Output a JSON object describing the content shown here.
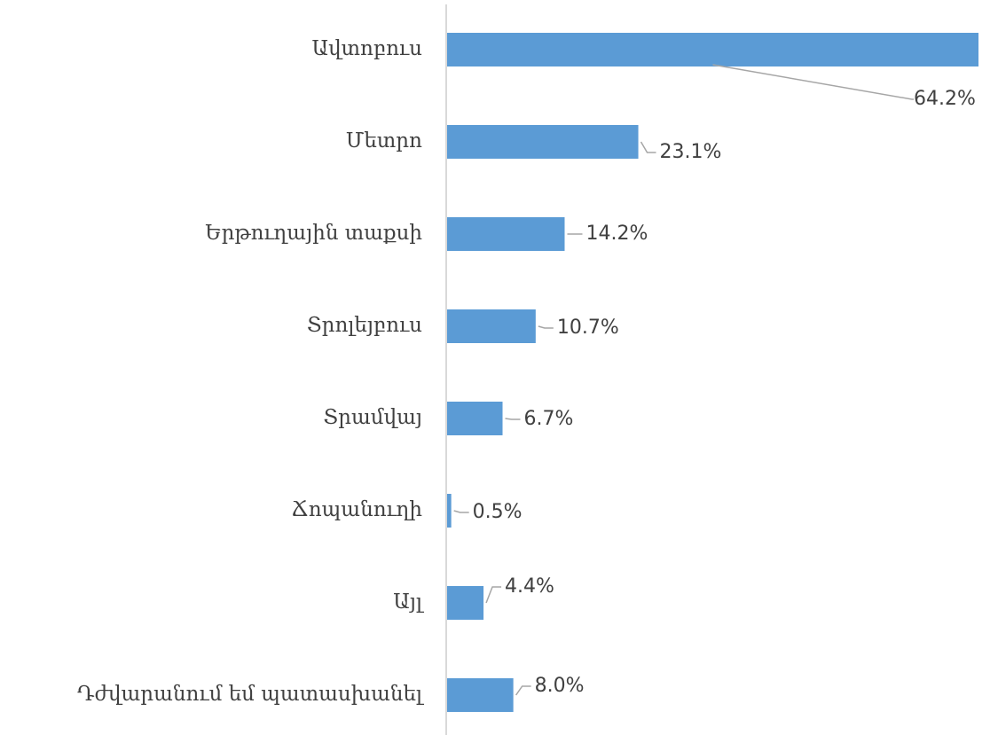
{
  "chart_data": {
    "type": "bar",
    "orientation": "horizontal",
    "categories": [
      "Ավտոբուս",
      "Մետրո",
      "Երթուղային տաքսի",
      "Տրոլեյբուս",
      "Տրամվայ",
      "Ճոպանուղի",
      "Այլ",
      "Դժվարանում եմ պատասխանել"
    ],
    "values": [
      64.2,
      23.1,
      14.2,
      10.7,
      6.7,
      0.5,
      4.4,
      8.0
    ],
    "value_labels": [
      "64.2%",
      "23.1%",
      "14.2%",
      "10.7%",
      "6.7%",
      "0.5%",
      "4.4%",
      "8.0%"
    ],
    "color": "#5b9bd5"
  }
}
